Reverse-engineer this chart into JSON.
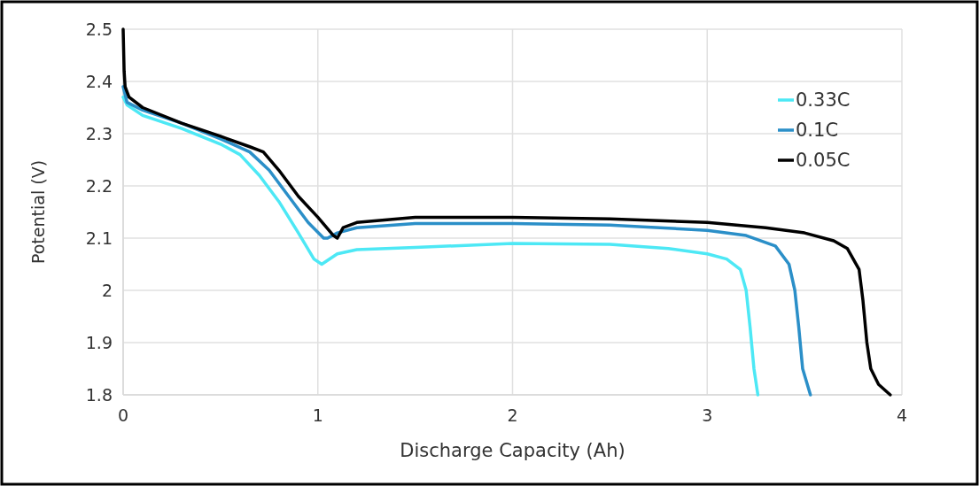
{
  "chart_data": {
    "type": "line",
    "xlabel": "Discharge Capacity (Ah)",
    "ylabel": "Potential (V)",
    "xlim": [
      0,
      4
    ],
    "xticks": [
      0,
      1,
      2,
      3,
      4
    ],
    "ylim": [
      1.8,
      2.5
    ],
    "yticks": [
      1.8,
      1.9,
      2,
      2.1,
      2.2,
      2.3,
      2.4,
      2.5
    ],
    "grid": true,
    "legend": "top right",
    "marker": "none",
    "line_style": "solid",
    "series": [
      {
        "name": "0.33C",
        "color": "#4de8f5",
        "x": [
          0,
          0.02,
          0.1,
          0.3,
          0.5,
          0.6,
          0.7,
          0.8,
          0.9,
          0.98,
          1.02,
          1.1,
          1.2,
          1.5,
          2,
          2.5,
          2.8,
          3,
          3.1,
          3.17,
          3.2,
          3.22,
          3.24,
          3.26
        ],
        "values": [
          2.37,
          2.355,
          2.335,
          2.31,
          2.28,
          2.26,
          2.22,
          2.17,
          2.11,
          2.06,
          2.05,
          2.07,
          2.078,
          2.082,
          2.09,
          2.088,
          2.08,
          2.07,
          2.06,
          2.04,
          2,
          1.93,
          1.85,
          1.8
        ]
      },
      {
        "name": "0.1C",
        "color": "#2b8fc8",
        "x": [
          0,
          0.02,
          0.1,
          0.3,
          0.5,
          0.65,
          0.75,
          0.85,
          0.95,
          1.03,
          1.05,
          1.1,
          1.2,
          1.5,
          2,
          2.5,
          3,
          3.2,
          3.35,
          3.42,
          3.45,
          3.47,
          3.49,
          3.53
        ],
        "values": [
          2.39,
          2.36,
          2.345,
          2.32,
          2.29,
          2.265,
          2.23,
          2.18,
          2.13,
          2.1,
          2.1,
          2.11,
          2.12,
          2.128,
          2.128,
          2.125,
          2.115,
          2.105,
          2.085,
          2.05,
          2,
          1.93,
          1.85,
          1.8
        ]
      },
      {
        "name": "0.05C",
        "color": "#000000",
        "x": [
          0,
          0.005,
          0.01,
          0.03,
          0.1,
          0.3,
          0.5,
          0.65,
          0.72,
          0.8,
          0.9,
          1,
          1.08,
          1.1,
          1.13,
          1.2,
          1.5,
          2,
          2.5,
          3,
          3.3,
          3.5,
          3.65,
          3.72,
          3.78,
          3.8,
          3.82,
          3.84,
          3.88,
          3.94
        ],
        "values": [
          2.5,
          2.42,
          2.39,
          2.37,
          2.35,
          2.32,
          2.295,
          2.275,
          2.265,
          2.23,
          2.18,
          2.14,
          2.105,
          2.1,
          2.12,
          2.13,
          2.14,
          2.14,
          2.137,
          2.13,
          2.12,
          2.11,
          2.095,
          2.08,
          2.04,
          1.98,
          1.9,
          1.85,
          1.82,
          1.8
        ]
      }
    ]
  }
}
